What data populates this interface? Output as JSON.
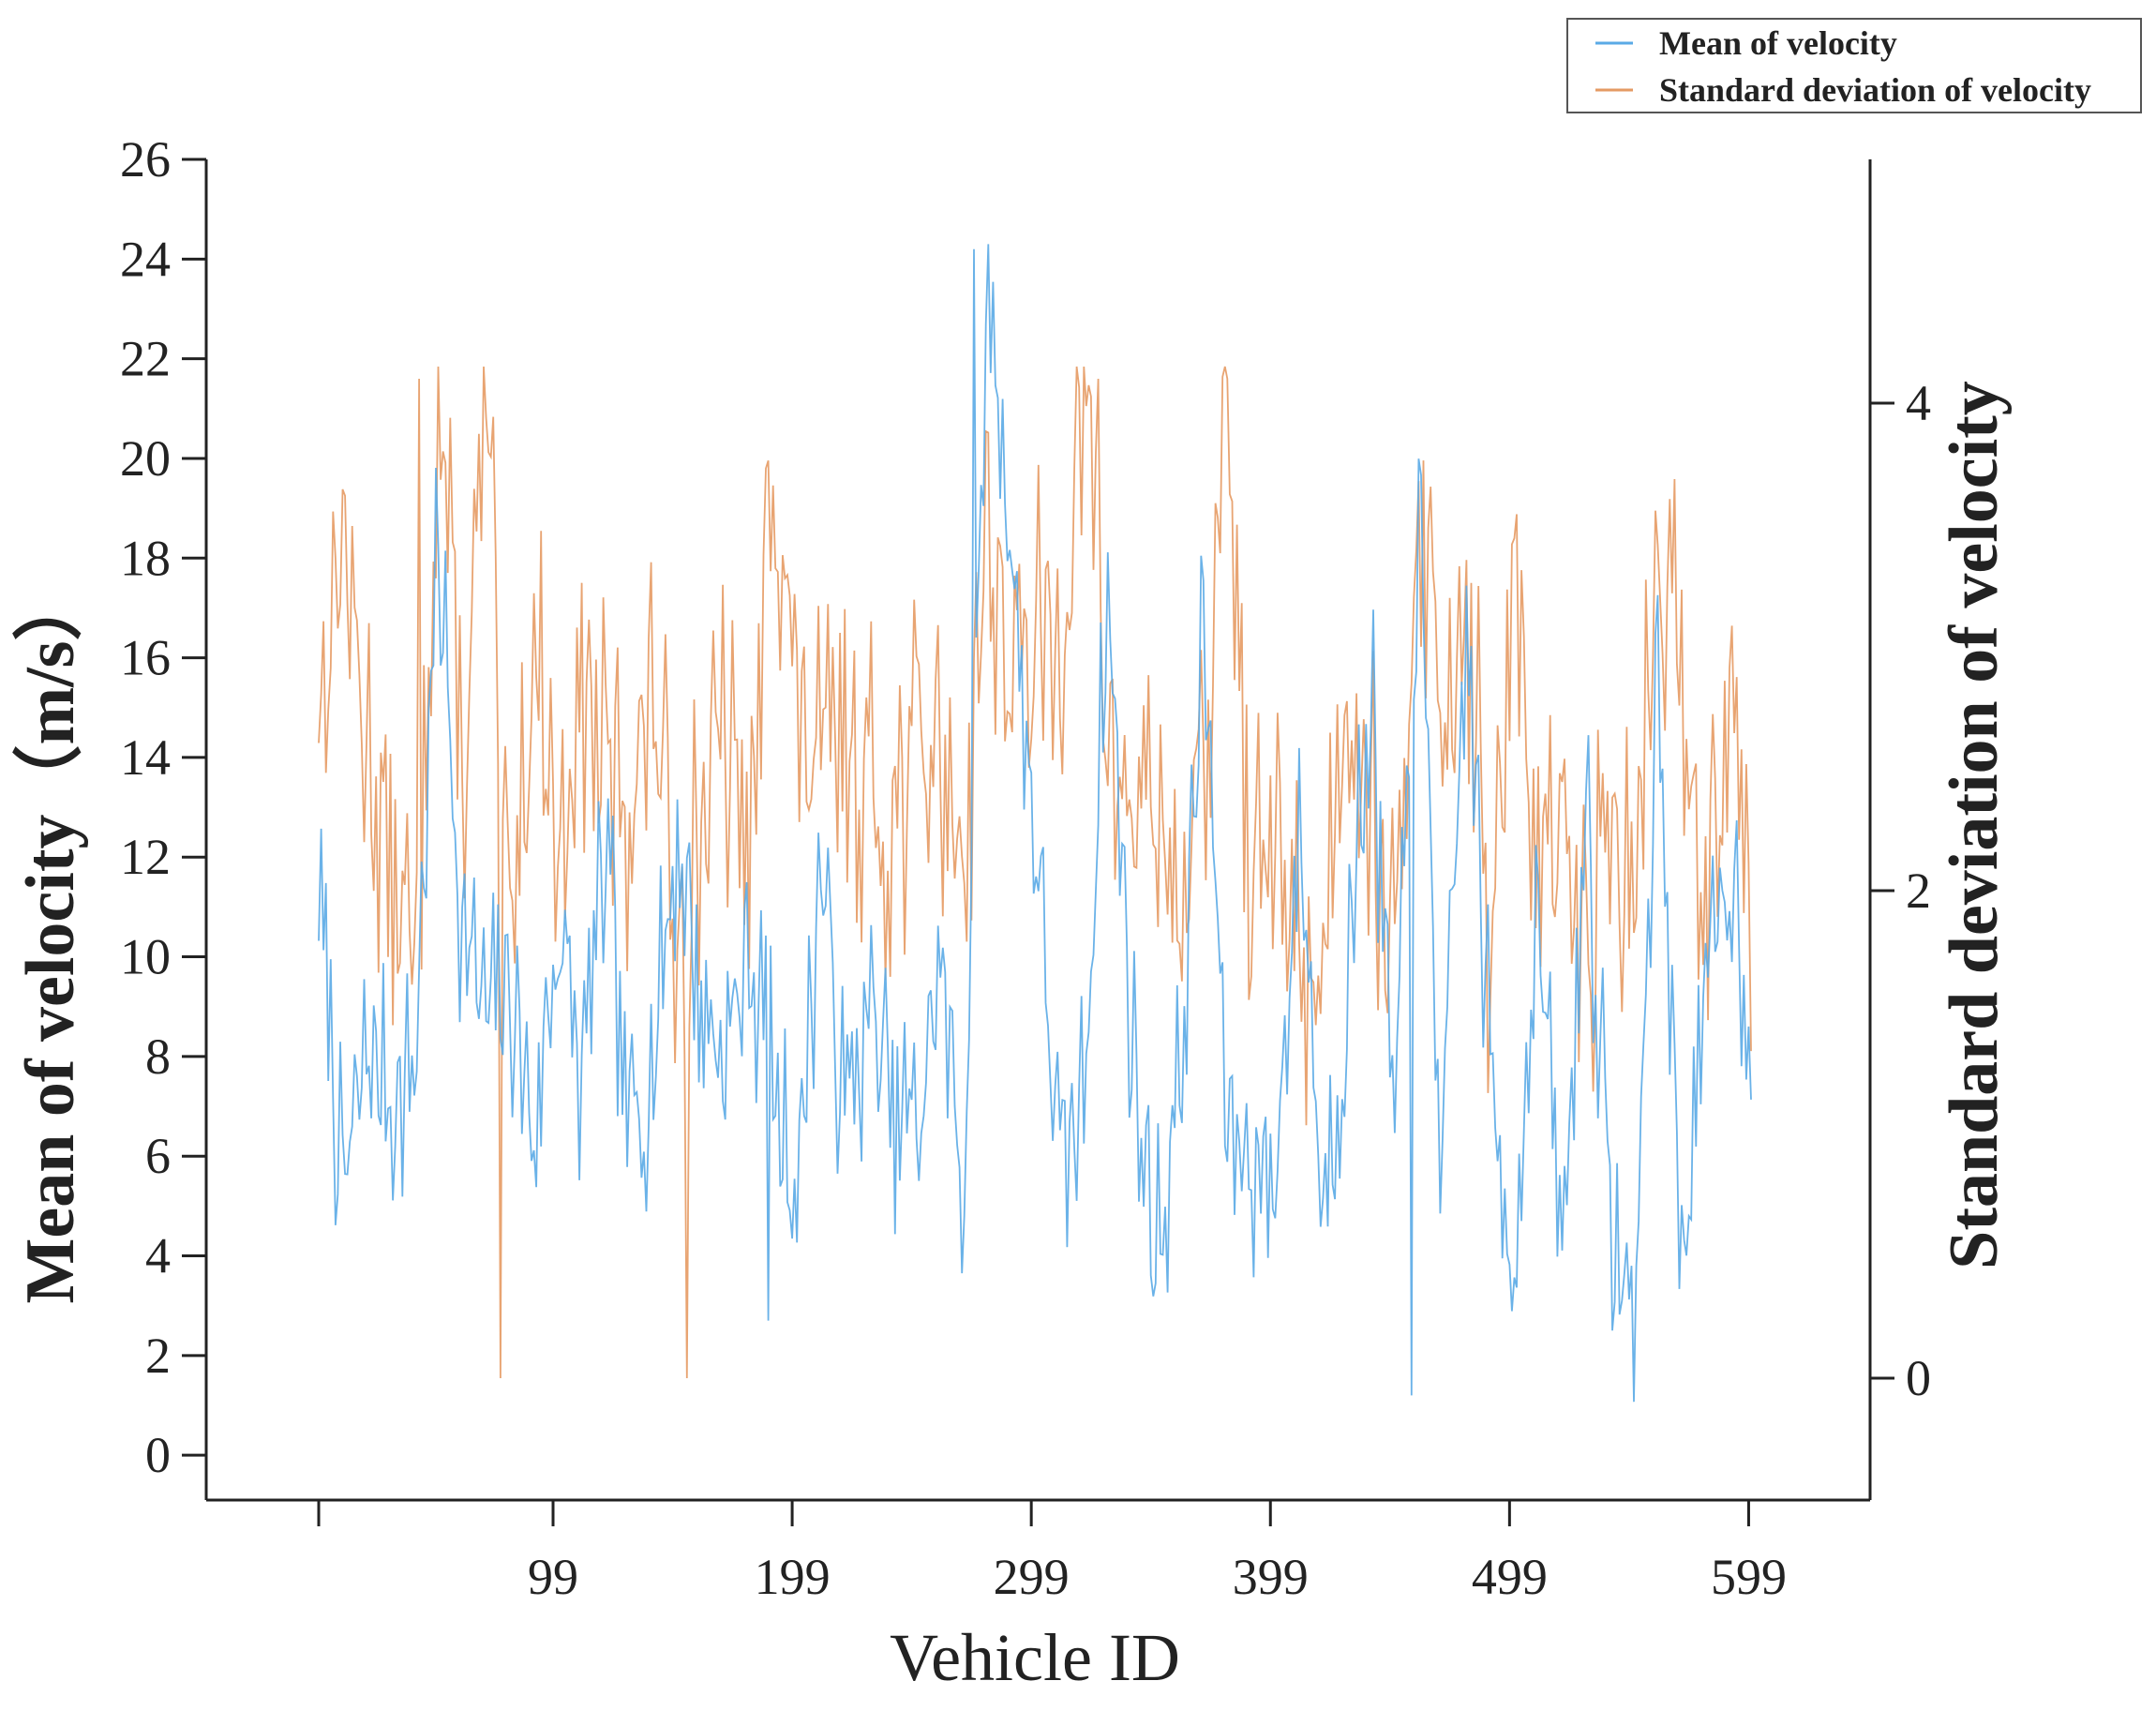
{
  "chart_data": {
    "type": "line",
    "xlabel": "Vehicle ID",
    "ylabel_left": "Mean of velocity（m/s）",
    "ylabel_right": "Standard deviation of velocity",
    "x_range": [
      1,
      600
    ],
    "x_ticks": [
      1,
      99,
      199,
      299,
      399,
      499,
      599
    ],
    "x_tick_labels": [
      "",
      "99",
      "199",
      "299",
      "399",
      "499",
      "599"
    ],
    "ylim_left": [
      -0.9,
      26
    ],
    "y_ticks_left": [
      0,
      2,
      4,
      6,
      8,
      10,
      12,
      14,
      16,
      18,
      20,
      22,
      24,
      26
    ],
    "ylim_right": [
      -0.5,
      5.0
    ],
    "y_ticks_right": [
      0,
      2,
      4
    ],
    "grid": false,
    "legend_position": "top-right",
    "series": [
      {
        "name": "Mean of velocity",
        "axis": "left",
        "color": "#5aaae6",
        "x": [
          1,
          11,
          21,
          31,
          41,
          51,
          61,
          71,
          81,
          91,
          101,
          111,
          121,
          131,
          141,
          151,
          161,
          171,
          181,
          191,
          201,
          211,
          221,
          231,
          241,
          251,
          261,
          271,
          281,
          291,
          301,
          311,
          321,
          331,
          341,
          351,
          361,
          371,
          381,
          391,
          401,
          411,
          421,
          431,
          441,
          451,
          461,
          471,
          481,
          491,
          501,
          511,
          521,
          531,
          541,
          551,
          561,
          571,
          581,
          591,
          599
        ],
        "values": [
          11.0,
          5.2,
          8.0,
          7.1,
          7.6,
          18.3,
          10.5,
          8.7,
          9.4,
          6.5,
          10.6,
          7.4,
          11.9,
          6.6,
          7.8,
          12.7,
          9.3,
          8.0,
          10.2,
          7.4,
          5.1,
          11.9,
          6.6,
          8.9,
          7.1,
          6.4,
          9.8,
          5.3,
          24.0,
          18.0,
          12.3,
          5.6,
          7.1,
          17.4,
          8.3,
          4.0,
          7.3,
          16.6,
          6.6,
          6.1,
          5.4,
          13.0,
          4.7,
          9.2,
          15.6,
          6.2,
          18.9,
          5.5,
          17.2,
          7.5,
          4.1,
          10.8,
          3.6,
          13.5,
          4.7,
          2.3,
          16.0,
          4.0,
          9.0,
          12.0,
          9.2
        ],
        "peak_values": [
          {
            "x": 275,
            "y": 24.2
          },
          {
            "x": 458,
            "y": 1.2
          },
          {
            "x": 189,
            "y": 2.7
          }
        ]
      },
      {
        "name": "Standard deviation of velocity",
        "axis": "right",
        "color": "#e59a63",
        "x": [
          1,
          11,
          21,
          31,
          41,
          51,
          61,
          71,
          81,
          91,
          101,
          111,
          121,
          131,
          141,
          151,
          161,
          171,
          181,
          191,
          201,
          211,
          221,
          231,
          241,
          251,
          261,
          271,
          281,
          291,
          301,
          311,
          321,
          331,
          341,
          351,
          361,
          371,
          381,
          391,
          401,
          411,
          421,
          431,
          441,
          451,
          461,
          471,
          481,
          491,
          501,
          511,
          521,
          531,
          541,
          551,
          561,
          571,
          581,
          591,
          599
        ],
        "values": [
          2.8,
          3.5,
          2.6,
          2.2,
          1.6,
          4.1,
          2.4,
          3.9,
          1.8,
          3.0,
          2.2,
          2.9,
          2.5,
          2.4,
          2.8,
          1.9,
          2.3,
          2.6,
          2.0,
          3.9,
          2.7,
          2.4,
          2.8,
          2.4,
          2.3,
          2.6,
          2.6,
          2.2,
          3.6,
          2.8,
          3.0,
          3.0,
          4.1,
          2.6,
          2.3,
          2.4,
          2.0,
          2.4,
          4.1,
          2.0,
          2.2,
          1.8,
          1.7,
          3.0,
          2.4,
          1.6,
          3.8,
          2.6,
          3.3,
          1.7,
          3.1,
          2.2,
          2.1,
          1.8,
          2.2,
          1.9,
          3.3,
          2.9,
          2.0,
          3.0,
          2.0
        ],
        "peak_values": [
          {
            "x": 43,
            "y": 4.1
          },
          {
            "x": 381,
            "y": 4.1
          },
          {
            "x": 327,
            "y": 4.1
          },
          {
            "x": 77,
            "y": 0.0
          },
          {
            "x": 155,
            "y": 0.0
          }
        ]
      }
    ]
  },
  "legend": {
    "items": [
      "Mean of velocity",
      "Standard deviation of velocity"
    ]
  }
}
